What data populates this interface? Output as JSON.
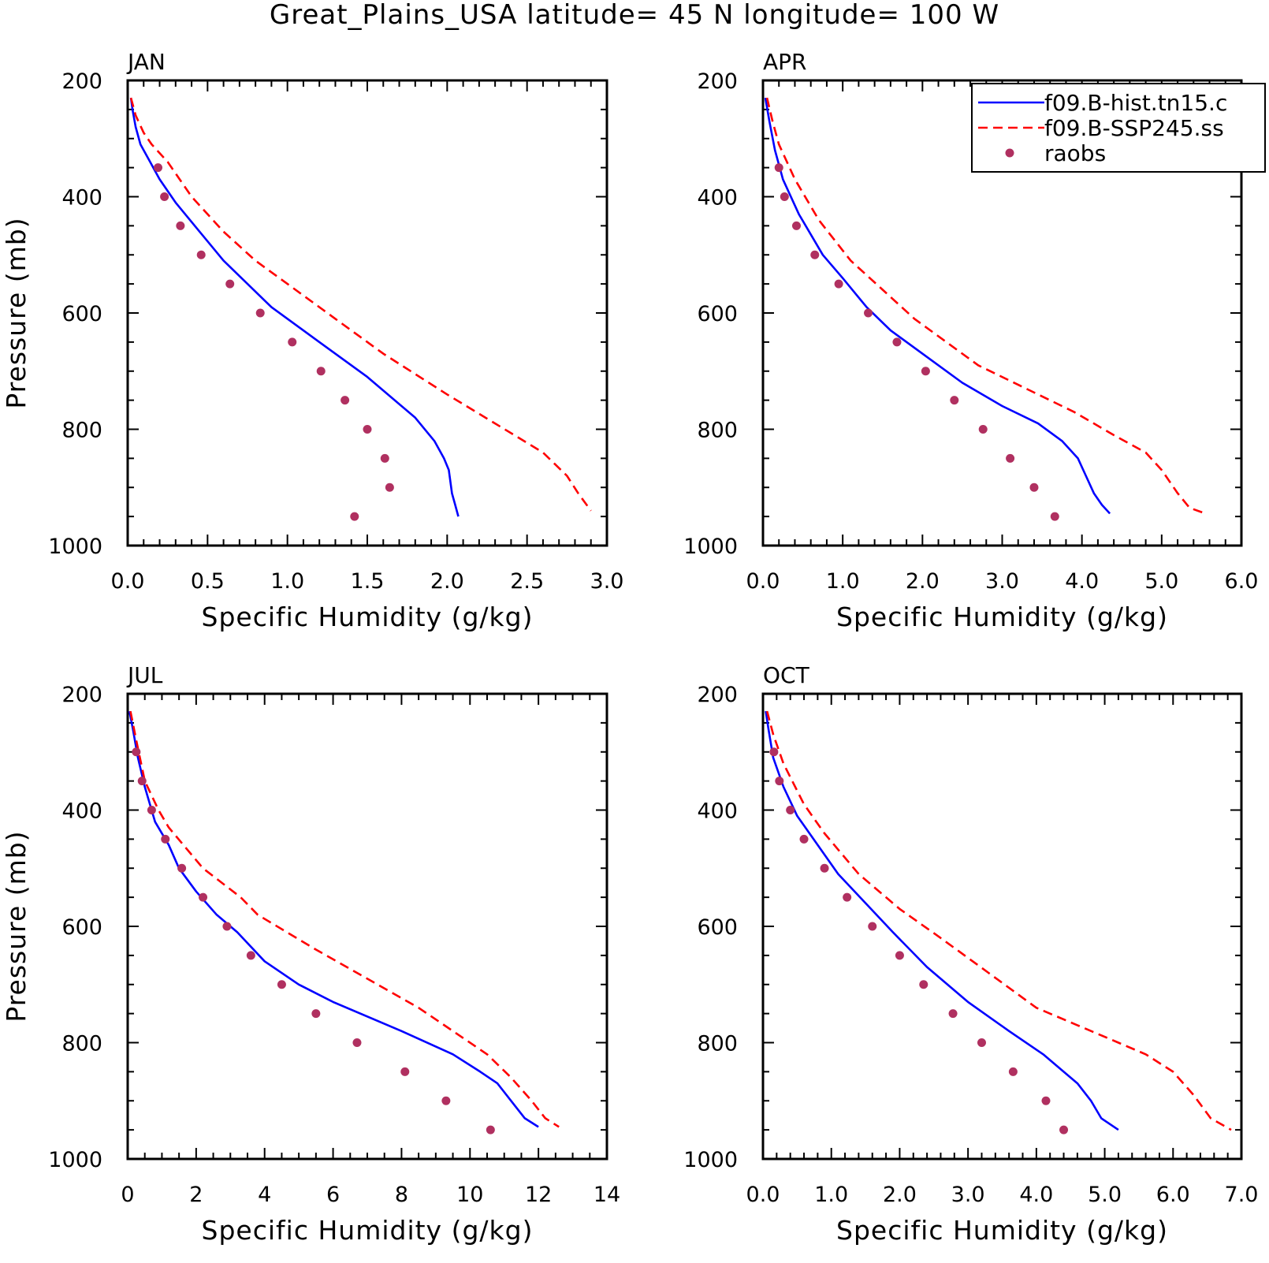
{
  "title": "Great_Plains_USA  latitude= 45 N longitude= 100 W",
  "legend": {
    "placement": "top-right of APR panel",
    "entries": [
      {
        "label": "f09.B-hist.tn15.c",
        "style": "solid",
        "color": "#0000ff"
      },
      {
        "label": "f09.B-SSP245.ss",
        "style": "dashed",
        "color": "#ff0000"
      },
      {
        "label": "raobs",
        "style": "marker",
        "color": "#b03060"
      }
    ]
  },
  "colors": {
    "hist": "#0000ff",
    "ssp": "#ff0000",
    "raobs": "#b03060"
  },
  "chart_data": [
    {
      "type": "line",
      "title": "JAN",
      "xlabel": "Specific Humidity (g/kg)",
      "ylabel": "Pressure (mb)",
      "xlim": [
        0,
        3
      ],
      "ylim": [
        200,
        1000
      ],
      "y_reversed": true,
      "xticks": [
        "0.0",
        "0.5",
        "1.0",
        "1.5",
        "2.0",
        "2.5",
        "3.0"
      ],
      "xtick_values": [
        0,
        0.5,
        1,
        1.5,
        2,
        2.5,
        3
      ],
      "yticks": [
        "200",
        "400",
        "600",
        "800",
        "1000"
      ],
      "ytick_values": [
        200,
        400,
        600,
        800,
        1000
      ],
      "series": [
        {
          "name": "f09.B-hist.tn15.c",
          "points": [
            [
              0.02,
              230
            ],
            [
              0.03,
              250
            ],
            [
              0.05,
              280
            ],
            [
              0.08,
              310
            ],
            [
              0.14,
              340
            ],
            [
              0.2,
              370
            ],
            [
              0.3,
              410
            ],
            [
              0.45,
              460
            ],
            [
              0.6,
              510
            ],
            [
              0.75,
              550
            ],
            [
              0.9,
              590
            ],
            [
              1.2,
              650
            ],
            [
              1.5,
              710
            ],
            [
              1.8,
              780
            ],
            [
              1.92,
              820
            ],
            [
              1.98,
              850
            ],
            [
              2.01,
              870
            ],
            [
              2.03,
              910
            ],
            [
              2.05,
              930
            ],
            [
              2.07,
              950
            ]
          ]
        },
        {
          "name": "f09.B-SSP245.ss",
          "points": [
            [
              0.02,
              230
            ],
            [
              0.05,
              260
            ],
            [
              0.1,
              290
            ],
            [
              0.15,
              310
            ],
            [
              0.25,
              340
            ],
            [
              0.4,
              400
            ],
            [
              0.6,
              460
            ],
            [
              0.8,
              510
            ],
            [
              1.0,
              550
            ],
            [
              1.3,
              610
            ],
            [
              1.6,
              670
            ],
            [
              2.0,
              740
            ],
            [
              2.3,
              790
            ],
            [
              2.6,
              840
            ],
            [
              2.75,
              880
            ],
            [
              2.82,
              910
            ],
            [
              2.9,
              940
            ]
          ]
        },
        {
          "name": "raobs",
          "points": [
            [
              0.19,
              350
            ],
            [
              0.23,
              400
            ],
            [
              0.33,
              450
            ],
            [
              0.46,
              500
            ],
            [
              0.64,
              550
            ],
            [
              0.83,
              600
            ],
            [
              1.03,
              650
            ],
            [
              1.21,
              700
            ],
            [
              1.36,
              750
            ],
            [
              1.5,
              800
            ],
            [
              1.61,
              850
            ],
            [
              1.64,
              900
            ],
            [
              1.42,
              950
            ]
          ]
        }
      ]
    },
    {
      "type": "line",
      "title": "APR",
      "xlabel": "Specific Humidity (g/kg)",
      "ylabel": "",
      "xlim": [
        0,
        6
      ],
      "ylim": [
        200,
        1000
      ],
      "y_reversed": true,
      "xticks": [
        "0.0",
        "1.0",
        "2.0",
        "3.0",
        "4.0",
        "5.0",
        "6.0"
      ],
      "xtick_values": [
        0,
        1,
        2,
        3,
        4,
        5,
        6
      ],
      "yticks": [
        "200",
        "400",
        "600",
        "800",
        "1000"
      ],
      "ytick_values": [
        200,
        400,
        600,
        800,
        1000
      ],
      "series": [
        {
          "name": "f09.B-hist.tn15.c",
          "points": [
            [
              0.03,
              230
            ],
            [
              0.08,
              270
            ],
            [
              0.15,
              320
            ],
            [
              0.25,
              370
            ],
            [
              0.45,
              430
            ],
            [
              0.75,
              500
            ],
            [
              1.0,
              540
            ],
            [
              1.3,
              590
            ],
            [
              1.6,
              630
            ],
            [
              2.0,
              670
            ],
            [
              2.5,
              720
            ],
            [
              3.0,
              760
            ],
            [
              3.45,
              790
            ],
            [
              3.75,
              820
            ],
            [
              3.95,
              850
            ],
            [
              4.05,
              880
            ],
            [
              4.15,
              910
            ],
            [
              4.25,
              930
            ],
            [
              4.35,
              945
            ]
          ]
        },
        {
          "name": "f09.B-SSP245.ss",
          "points": [
            [
              0.05,
              230
            ],
            [
              0.12,
              270
            ],
            [
              0.2,
              310
            ],
            [
              0.4,
              370
            ],
            [
              0.7,
              440
            ],
            [
              1.1,
              510
            ],
            [
              1.5,
              560
            ],
            [
              1.9,
              610
            ],
            [
              2.3,
              650
            ],
            [
              2.7,
              690
            ],
            [
              3.3,
              730
            ],
            [
              3.9,
              770
            ],
            [
              4.4,
              810
            ],
            [
              4.8,
              840
            ],
            [
              5.0,
              870
            ],
            [
              5.2,
              910
            ],
            [
              5.35,
              935
            ],
            [
              5.55,
              945
            ]
          ]
        },
        {
          "name": "raobs",
          "points": [
            [
              0.2,
              350
            ],
            [
              0.27,
              400
            ],
            [
              0.42,
              450
            ],
            [
              0.65,
              500
            ],
            [
              0.95,
              550
            ],
            [
              1.32,
              600
            ],
            [
              1.68,
              650
            ],
            [
              2.04,
              700
            ],
            [
              2.4,
              750
            ],
            [
              2.76,
              800
            ],
            [
              3.1,
              850
            ],
            [
              3.4,
              900
            ],
            [
              3.66,
              950
            ]
          ]
        }
      ]
    },
    {
      "type": "line",
      "title": "JUL",
      "xlabel": "Specific Humidity (g/kg)",
      "ylabel": "Pressure (mb)",
      "xlim": [
        0,
        14
      ],
      "ylim": [
        200,
        1000
      ],
      "y_reversed": true,
      "xticks": [
        "0",
        "2",
        "4",
        "6",
        "8",
        "10",
        "12",
        "14"
      ],
      "xtick_values": [
        0,
        2,
        4,
        6,
        8,
        10,
        12,
        14
      ],
      "yticks": [
        "200",
        "400",
        "600",
        "800",
        "1000"
      ],
      "ytick_values": [
        200,
        400,
        600,
        800,
        1000
      ],
      "series": [
        {
          "name": "f09.B-hist.tn15.c",
          "points": [
            [
              0.05,
              230
            ],
            [
              0.15,
              260
            ],
            [
              0.3,
              310
            ],
            [
              0.5,
              360
            ],
            [
              0.8,
              420
            ],
            [
              1.2,
              460
            ],
            [
              1.5,
              500
            ],
            [
              2.0,
              540
            ],
            [
              2.6,
              580
            ],
            [
              3.2,
              610
            ],
            [
              4.0,
              660
            ],
            [
              5.0,
              700
            ],
            [
              6.0,
              730
            ],
            [
              8.0,
              780
            ],
            [
              9.5,
              820
            ],
            [
              10.3,
              850
            ],
            [
              10.8,
              870
            ],
            [
              11.2,
              900
            ],
            [
              11.6,
              930
            ],
            [
              12.0,
              945
            ]
          ]
        },
        {
          "name": "f09.B-SSP245.ss",
          "points": [
            [
              0.08,
              230
            ],
            [
              0.25,
              280
            ],
            [
              0.5,
              350
            ],
            [
              0.9,
              400
            ],
            [
              1.2,
              430
            ],
            [
              2.2,
              500
            ],
            [
              3.3,
              550
            ],
            [
              3.8,
              580
            ],
            [
              5.5,
              640
            ],
            [
              7.0,
              690
            ],
            [
              8.5,
              740
            ],
            [
              9.5,
              780
            ],
            [
              10.5,
              820
            ],
            [
              11.2,
              860
            ],
            [
              11.8,
              900
            ],
            [
              12.2,
              930
            ],
            [
              12.6,
              945
            ]
          ]
        },
        {
          "name": "raobs",
          "points": [
            [
              0.25,
              300
            ],
            [
              0.42,
              350
            ],
            [
              0.7,
              400
            ],
            [
              1.1,
              450
            ],
            [
              1.58,
              500
            ],
            [
              2.2,
              550
            ],
            [
              2.9,
              600
            ],
            [
              3.6,
              650
            ],
            [
              4.5,
              700
            ],
            [
              5.5,
              750
            ],
            [
              6.7,
              800
            ],
            [
              8.1,
              850
            ],
            [
              9.3,
              900
            ],
            [
              10.6,
              950
            ]
          ]
        }
      ]
    },
    {
      "type": "line",
      "title": "OCT",
      "xlabel": "Specific Humidity (g/kg)",
      "ylabel": "",
      "xlim": [
        0,
        7
      ],
      "ylim": [
        200,
        1000
      ],
      "y_reversed": true,
      "xticks": [
        "0.0",
        "1.0",
        "2.0",
        "3.0",
        "4.0",
        "5.0",
        "6.0",
        "7.0"
      ],
      "xtick_values": [
        0,
        1,
        2,
        3,
        4,
        5,
        6,
        7
      ],
      "yticks": [
        "200",
        "400",
        "600",
        "800",
        "1000"
      ],
      "ytick_values": [
        200,
        400,
        600,
        800,
        1000
      ],
      "series": [
        {
          "name": "f09.B-hist.tn15.c",
          "points": [
            [
              0.04,
              230
            ],
            [
              0.08,
              260
            ],
            [
              0.15,
              310
            ],
            [
              0.3,
              360
            ],
            [
              0.5,
              410
            ],
            [
              0.8,
              460
            ],
            [
              1.1,
              510
            ],
            [
              1.5,
              560
            ],
            [
              1.9,
              610
            ],
            [
              2.4,
              670
            ],
            [
              3.0,
              730
            ],
            [
              3.6,
              780
            ],
            [
              4.1,
              820
            ],
            [
              4.4,
              850
            ],
            [
              4.6,
              870
            ],
            [
              4.8,
              900
            ],
            [
              4.95,
              930
            ],
            [
              5.2,
              950
            ]
          ]
        },
        {
          "name": "f09.B-SSP245.ss",
          "points": [
            [
              0.06,
              230
            ],
            [
              0.15,
              270
            ],
            [
              0.3,
              320
            ],
            [
              0.6,
              390
            ],
            [
              0.9,
              440
            ],
            [
              1.4,
              510
            ],
            [
              2.0,
              570
            ],
            [
              2.6,
              620
            ],
            [
              3.3,
              680
            ],
            [
              4.0,
              740
            ],
            [
              4.6,
              770
            ],
            [
              5.2,
              800
            ],
            [
              5.6,
              820
            ],
            [
              6.0,
              850
            ],
            [
              6.3,
              890
            ],
            [
              6.55,
              930
            ],
            [
              6.85,
              950
            ]
          ]
        },
        {
          "name": "raobs",
          "points": [
            [
              0.16,
              300
            ],
            [
              0.24,
              350
            ],
            [
              0.4,
              400
            ],
            [
              0.6,
              450
            ],
            [
              0.9,
              500
            ],
            [
              1.23,
              550
            ],
            [
              1.6,
              600
            ],
            [
              2.0,
              650
            ],
            [
              2.35,
              700
            ],
            [
              2.78,
              750
            ],
            [
              3.2,
              800
            ],
            [
              3.66,
              850
            ],
            [
              4.14,
              900
            ],
            [
              4.4,
              950
            ]
          ]
        }
      ]
    }
  ]
}
